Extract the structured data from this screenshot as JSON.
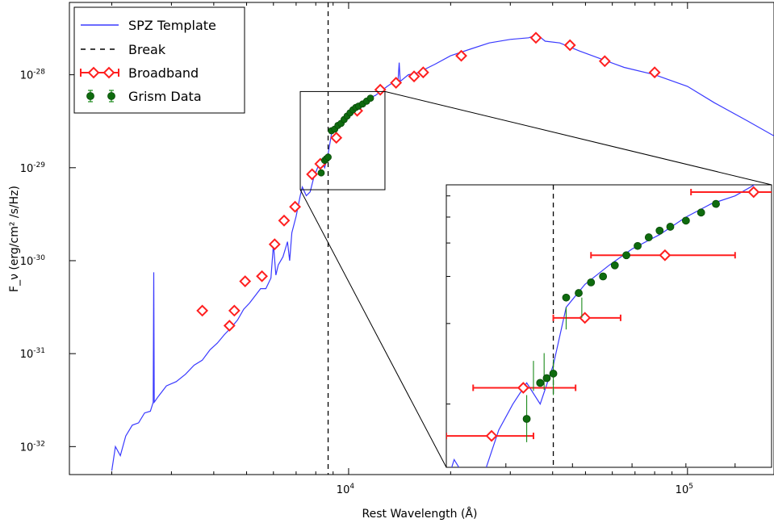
{
  "chart_data": {
    "type": "line",
    "xlabel": "Rest Wavelength (Å)",
    "ylabel": "F_ν (erg/cm² /s/Hz)",
    "x_scale": "log",
    "y_scale": "log",
    "xlim": [
      1500,
      180000
    ],
    "ylim": [
      5e-33,
      6e-28
    ],
    "grid": false,
    "legend": "top-left",
    "x_ticks": [
      {
        "value": 10000,
        "label_base": "10",
        "label_exp": "4"
      },
      {
        "value": 100000,
        "label_base": "10",
        "label_exp": "5"
      }
    ],
    "y_ticks": [
      {
        "value": 1e-32,
        "label_base": "10",
        "label_exp": "-32"
      },
      {
        "value": 1e-31,
        "label_base": "10",
        "label_exp": "-31"
      },
      {
        "value": 1e-30,
        "label_base": "10",
        "label_exp": "-30"
      },
      {
        "value": 1e-29,
        "label_base": "10",
        "label_exp": "-29"
      },
      {
        "value": 1e-28,
        "label_base": "10",
        "label_exp": "-28"
      }
    ],
    "break_wavelength": 8700,
    "series": [
      {
        "name": "SPZ Template",
        "type": "line",
        "color": "#3a3aff",
        "points": [
          [
            2000,
            5.5e-33
          ],
          [
            2050,
            1e-32
          ],
          [
            2120,
            8e-33
          ],
          [
            2200,
            1.3e-32
          ],
          [
            2300,
            1.7e-32
          ],
          [
            2400,
            1.8e-32
          ],
          [
            2500,
            2.3e-32
          ],
          [
            2600,
            2.4e-32
          ],
          [
            2650,
            3e-32
          ],
          [
            2660,
            7.5e-31
          ],
          [
            2670,
            3e-32
          ],
          [
            2750,
            3.5e-32
          ],
          [
            2900,
            4.5e-32
          ],
          [
            3100,
            5e-32
          ],
          [
            3300,
            6e-32
          ],
          [
            3500,
            7.5e-32
          ],
          [
            3700,
            8.5e-32
          ],
          [
            3900,
            1.1e-31
          ],
          [
            4100,
            1.3e-31
          ],
          [
            4300,
            1.6e-31
          ],
          [
            4500,
            1.9e-31
          ],
          [
            4700,
            2.3e-31
          ],
          [
            4900,
            3e-31
          ],
          [
            5100,
            3.5e-31
          ],
          [
            5300,
            4.2e-31
          ],
          [
            5500,
            5e-31
          ],
          [
            5700,
            5e-31
          ],
          [
            5900,
            6.5e-31
          ],
          [
            6000,
            1.5e-30
          ],
          [
            6100,
            7e-31
          ],
          [
            6200,
            9e-31
          ],
          [
            6400,
            1.1e-30
          ],
          [
            6600,
            1.6e-30
          ],
          [
            6700,
            1e-30
          ],
          [
            6800,
            2e-30
          ],
          [
            7000,
            3e-30
          ],
          [
            7200,
            5e-30
          ],
          [
            7300,
            6.2e-30
          ],
          [
            7500,
            5e-30
          ],
          [
            7700,
            5.5e-30
          ],
          [
            7900,
            8e-30
          ],
          [
            8100,
            1e-29
          ],
          [
            8300,
            1.2e-29
          ],
          [
            8500,
            1e-29
          ],
          [
            8700,
            1.4e-29
          ],
          [
            8900,
            2.3e-29
          ],
          [
            9200,
            2.8e-29
          ],
          [
            9600,
            3.3e-29
          ],
          [
            10000,
            3.8e-29
          ],
          [
            10500,
            4.3e-29
          ],
          [
            11000,
            5e-29
          ],
          [
            11500,
            5.6e-29
          ],
          [
            12000,
            6e-29
          ],
          [
            13000,
            7.5e-29
          ],
          [
            14000,
            9e-29
          ],
          [
            14100,
            1.35e-28
          ],
          [
            14200,
            8.5e-29
          ],
          [
            15000,
            1e-28
          ],
          [
            16000,
            1.05e-28
          ],
          [
            18000,
            1.3e-28
          ],
          [
            20000,
            1.6e-28
          ],
          [
            23000,
            1.9e-28
          ],
          [
            26000,
            2.2e-28
          ],
          [
            30000,
            2.4e-28
          ],
          [
            34000,
            2.5e-28
          ],
          [
            36000,
            2.7e-28
          ],
          [
            38000,
            2.3e-28
          ],
          [
            42000,
            2.2e-28
          ],
          [
            48000,
            1.8e-28
          ],
          [
            55000,
            1.5e-28
          ],
          [
            65000,
            1.2e-28
          ],
          [
            80000,
            1e-28
          ],
          [
            100000,
            7.5e-29
          ],
          [
            120000,
            5e-29
          ],
          [
            150000,
            3.2e-29
          ],
          [
            180000,
            2.2e-29
          ]
        ]
      },
      {
        "name": "Break",
        "type": "vline",
        "color": "#000000",
        "x": 8700
      },
      {
        "name": "Broadband",
        "type": "points",
        "color": "#ff1f1f",
        "marker": "diamond-open",
        "points": [
          [
            3700,
            2.9e-31
          ],
          [
            4450,
            2e-31
          ],
          [
            4600,
            2.9e-31
          ],
          [
            4950,
            6e-31
          ],
          [
            5550,
            6.8e-31
          ],
          [
            6050,
            1.5e-30
          ],
          [
            6450,
            2.7e-30
          ],
          [
            6950,
            3.8e-30
          ],
          [
            7800,
            8.5e-30
          ],
          [
            8250,
            1.1e-29
          ],
          [
            9200,
            2.1e-29
          ],
          [
            10600,
            4.1e-29
          ],
          [
            12400,
            6.9e-29
          ],
          [
            13800,
            8.2e-29
          ],
          [
            15600,
            9.6e-29
          ],
          [
            16600,
            1.06e-28
          ],
          [
            21500,
            1.6e-28
          ],
          [
            35700,
            2.5e-28
          ],
          [
            45000,
            2.08e-28
          ],
          [
            57000,
            1.4e-28
          ],
          [
            80000,
            1.06e-28
          ]
        ]
      },
      {
        "name": "Grism Data",
        "type": "points",
        "color": "#0e6b0e",
        "marker": "filled-circle",
        "points": [
          [
            8300,
            8.8e-30
          ],
          [
            8500,
            1.2e-29
          ],
          [
            8600,
            1.25e-29
          ],
          [
            8700,
            1.3e-29
          ],
          [
            8900,
            2.5e-29
          ],
          [
            9100,
            2.6e-29
          ],
          [
            9300,
            2.85e-29
          ],
          [
            9500,
            3e-29
          ],
          [
            9700,
            3.3e-29
          ],
          [
            9900,
            3.6e-29
          ],
          [
            10100,
            3.9e-29
          ],
          [
            10300,
            4.2e-29
          ],
          [
            10500,
            4.45e-29
          ],
          [
            10700,
            4.6e-29
          ],
          [
            11000,
            4.85e-29
          ],
          [
            11300,
            5.2e-29
          ],
          [
            11600,
            5.6e-29
          ]
        ]
      }
    ],
    "inset": {
      "xlim": [
        7200,
        12800
      ],
      "ylim": [
        5.8e-30,
        6.6e-29
      ],
      "x_scale": "log",
      "y_scale": "log",
      "broadband_with_xerr": [
        {
          "x": 7800,
          "y": 7.6e-30,
          "xmin": 7200,
          "xmax": 8400
        },
        {
          "x": 8250,
          "y": 1.15e-29,
          "xmin": 7550,
          "xmax": 9050
        },
        {
          "x": 9200,
          "y": 2.1e-29,
          "xmin": 8700,
          "xmax": 9800
        },
        {
          "x": 10600,
          "y": 3.6e-29,
          "xmin": 9300,
          "xmax": 12000
        },
        {
          "x": 12400,
          "y": 6.2e-29,
          "xmin": 11100,
          "xmax": 13000
        }
      ],
      "grism_err": [
        [
          8300,
          8.8e-30,
          7.2e-30,
          1.08e-29
        ],
        [
          8400,
          1.28e-29,
          1.12e-29,
          1.45e-29
        ],
        [
          8560,
          1.33e-29,
          1.13e-29,
          1.55e-29
        ],
        [
          8700,
          1.27e-29,
          1.08e-29,
          1.47e-29
        ],
        [
          8900,
          2.1e-29,
          1.9e-29,
          2.3e-29
        ],
        [
          9150,
          2.3e-29,
          2.1e-29,
          2.5e-29
        ]
      ]
    }
  }
}
